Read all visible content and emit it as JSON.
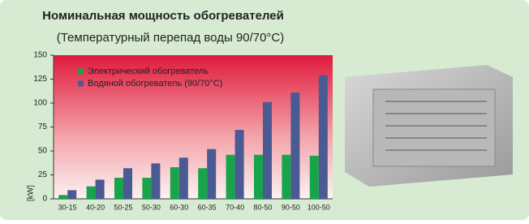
{
  "chart_data": {
    "type": "bar",
    "title": "Номинальная мощность обогревателей",
    "subtitle": "(Температурный перепад воды 90/70°C)",
    "y_label": "[kW]",
    "categories": [
      "30-15",
      "40-20",
      "50-25",
      "50-30",
      "60-30",
      "60-35",
      "70-40",
      "80-50",
      "90-50",
      "100-50"
    ],
    "series": [
      {
        "name": "Электрический обогреватель",
        "color": "#17a44a",
        "values": [
          4,
          13,
          22,
          22,
          33,
          32,
          46,
          46,
          46,
          45
        ]
      },
      {
        "name": "Водяной обогреватель (90/70°C)",
        "color": "#4a5a93",
        "values": [
          9,
          20,
          32,
          37,
          43,
          52,
          72,
          101,
          111,
          129
        ]
      }
    ],
    "ylim": [
      0,
      150
    ],
    "yticks": [
      0,
      25,
      50,
      75,
      100,
      125,
      150
    ],
    "legend": "upper left"
  }
}
